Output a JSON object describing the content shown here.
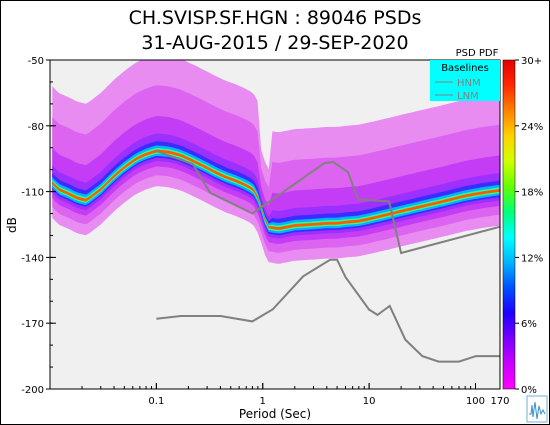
{
  "chart_data": {
    "type": "heatmap",
    "title_line1": "CH.SVISP.SF.HGN : 89046 PSDs",
    "title_line2": "31-AUG-2015 / 29-SEP-2020",
    "xlabel": "Period (Sec)",
    "ylabel": "dB",
    "x_scale": "log",
    "xlim": [
      0.01,
      170
    ],
    "ylim": [
      -200,
      -50
    ],
    "x_ticks": [
      {
        "value": 0.1,
        "label": "0.1"
      },
      {
        "value": 1,
        "label": "1"
      },
      {
        "value": 10,
        "label": "10"
      },
      {
        "value": 100,
        "label": "100"
      },
      {
        "value": 170,
        "label": "170"
      }
    ],
    "y_ticks": [
      {
        "value": -50,
        "label": "-50"
      },
      {
        "value": -80,
        "label": "-80"
      },
      {
        "value": -110,
        "label": "-110"
      },
      {
        "value": -140,
        "label": "-140"
      },
      {
        "value": -170,
        "label": "-170"
      },
      {
        "value": -200,
        "label": "-200"
      }
    ],
    "colorbar": {
      "label": "PSD PDF",
      "ticks": [
        "30+",
        "24%",
        "18%",
        "12%",
        "6%",
        "0%"
      ],
      "colors": [
        "#ff00ff",
        "#c800ff",
        "#7800ff",
        "#1e00ff",
        "#0050ff",
        "#00b4ff",
        "#00ffff",
        "#00ff78",
        "#64ff00",
        "#d2ff00",
        "#ffd200",
        "#ff8200",
        "#ff2800",
        "#e60000"
      ]
    },
    "legend": {
      "title": "Baselines",
      "position": "top-right",
      "background": "#00ffff",
      "entries": [
        {
          "name": "HNM",
          "color": "#808080"
        },
        {
          "name": "LNM",
          "color": "#808080"
        }
      ]
    },
    "baselines": {
      "HNM": {
        "x": [
          0.1,
          0.22,
          0.32,
          0.8,
          3.8,
          4.6,
          6.3,
          7.9,
          15.4,
          20,
          170
        ],
        "y": [
          -91.5,
          -97.4,
          -110.5,
          -120,
          -97,
          -96.5,
          -101,
          -113.5,
          -114.5,
          -138,
          -126
        ]
      },
      "LNM": {
        "x": [
          0.1,
          0.17,
          0.4,
          0.8,
          1.24,
          2.4,
          4.3,
          5,
          6,
          10,
          12,
          15.6,
          21.9,
          31.6,
          45,
          70,
          101,
          170
        ],
        "y": [
          -168,
          -166.7,
          -166.7,
          -169.2,
          -163.7,
          -148.6,
          -141.1,
          -141.1,
          -149,
          -163.8,
          -166.2,
          -162.1,
          -177.5,
          -185,
          -187.5,
          -187.5,
          -185,
          -185
        ]
      }
    },
    "density_ridge": {
      "x": [
        0.0105,
        0.012,
        0.015,
        0.018,
        0.022,
        0.03,
        0.04,
        0.05,
        0.065,
        0.08,
        0.1,
        0.13,
        0.17,
        0.22,
        0.28,
        0.35,
        0.45,
        0.55,
        0.65,
        0.75,
        0.85,
        0.95,
        1.1,
        1.4,
        2,
        3,
        4,
        5,
        6,
        8,
        10,
        15,
        20,
        30,
        50,
        80,
        120,
        170
      ],
      "y": [
        -106,
        -109,
        -111,
        -113,
        -114,
        -109,
        -103,
        -99,
        -95,
        -93,
        -91.5,
        -92,
        -93.5,
        -96,
        -98.5,
        -101,
        -103.5,
        -105,
        -106.5,
        -108,
        -110,
        -116,
        -126,
        -127,
        -125.5,
        -125,
        -124.5,
        -124.5,
        -124,
        -123.5,
        -122.5,
        -120.5,
        -119,
        -117,
        -114.5,
        -112,
        -110.5,
        -109.5
      ]
    }
  }
}
